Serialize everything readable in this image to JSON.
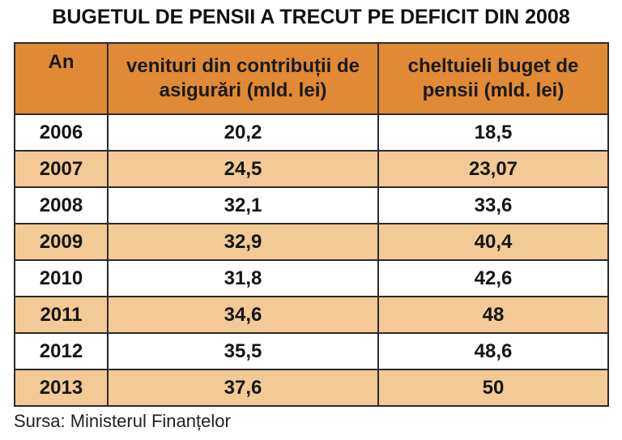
{
  "title": "BUGETUL DE PENSII A TRECUT PE DEFICIT DIN 2008",
  "source": "Sursa: Ministerul Finanțelor",
  "colors": {
    "header_bg": "#e08a35",
    "row_even_bg": "#f3c995",
    "row_odd_bg": "#ffffff",
    "border": "#2a2a2a"
  },
  "chart_data": {
    "type": "table",
    "title": "BUGETUL DE PENSII A TRECUT PE DEFICIT DIN 2008",
    "columns": [
      "An",
      "venituri din contribuții de asigurări (mld. lei)",
      "cheltuieli buget de pensii (mld. lei)"
    ],
    "rows": [
      [
        "2006",
        "20,2",
        "18,5"
      ],
      [
        "2007",
        "24,5",
        "23,07"
      ],
      [
        "2008",
        "32,1",
        "33,6"
      ],
      [
        "2009",
        "32,9",
        "40,4"
      ],
      [
        "2010",
        "31,8",
        "42,6"
      ],
      [
        "2011",
        "34,6",
        "48"
      ],
      [
        "2012",
        "35,5",
        "48,6"
      ],
      [
        "2013",
        "37,6",
        "50"
      ]
    ],
    "source": "Sursa: Ministerul Finanțelor"
  }
}
